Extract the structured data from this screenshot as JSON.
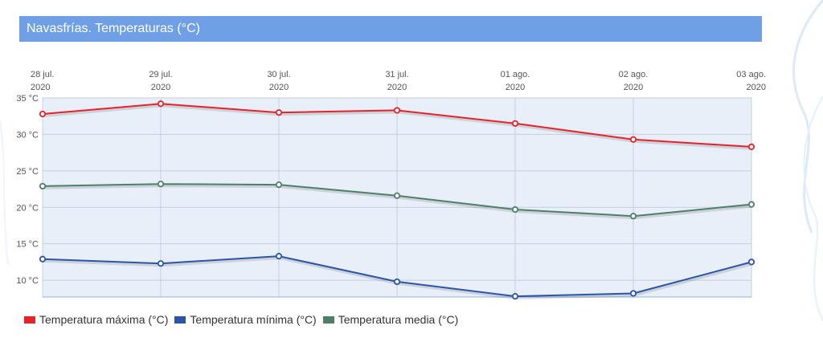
{
  "header": {
    "title": "Navasfrías. Temperaturas (°C)"
  },
  "chart_data": {
    "type": "line",
    "x": [
      "28 jul. 2020",
      "29 jul. 2020",
      "30 jul. 2020",
      "31 jul. 2020",
      "01 ago. 2020",
      "02 ago. 2020",
      "03 ago. 2020"
    ],
    "x_ticks": [
      {
        "line1": "28 jul.",
        "line2": "2020"
      },
      {
        "line1": "29 jul.",
        "line2": "2020"
      },
      {
        "line1": "30 jul.",
        "line2": "2020"
      },
      {
        "line1": "31 jul.",
        "line2": "2020"
      },
      {
        "line1": "01 ago.",
        "line2": "2020"
      },
      {
        "line1": "02 ago.",
        "line2": "2020"
      },
      {
        "line1": "03 ago.",
        "line2": "2020"
      }
    ],
    "y_ticks": [
      {
        "value": 35,
        "label": "35 °C"
      },
      {
        "value": 30,
        "label": "30 °C"
      },
      {
        "value": 25,
        "label": "25 °C"
      },
      {
        "value": 20,
        "label": "20 °C"
      },
      {
        "value": 15,
        "label": "15 °C"
      },
      {
        "value": 10,
        "label": "10 °C"
      }
    ],
    "ylim": [
      7.7,
      35
    ],
    "grid": true,
    "legend_position": "bottom-left",
    "series": [
      {
        "name": "Temperatura máxima (°C)",
        "color": "#e8212a",
        "values": [
          32.8,
          34.2,
          33.0,
          33.3,
          31.5,
          29.3,
          28.3
        ]
      },
      {
        "name": "Temperatura mínima (°C)",
        "color": "#2b55a8",
        "values": [
          12.9,
          12.3,
          13.3,
          9.8,
          7.8,
          8.2,
          12.5
        ]
      },
      {
        "name": "Temperatura media (°C)",
        "color": "#4f7f68",
        "values": [
          22.9,
          23.2,
          23.1,
          21.6,
          19.7,
          18.8,
          20.4
        ]
      }
    ]
  }
}
